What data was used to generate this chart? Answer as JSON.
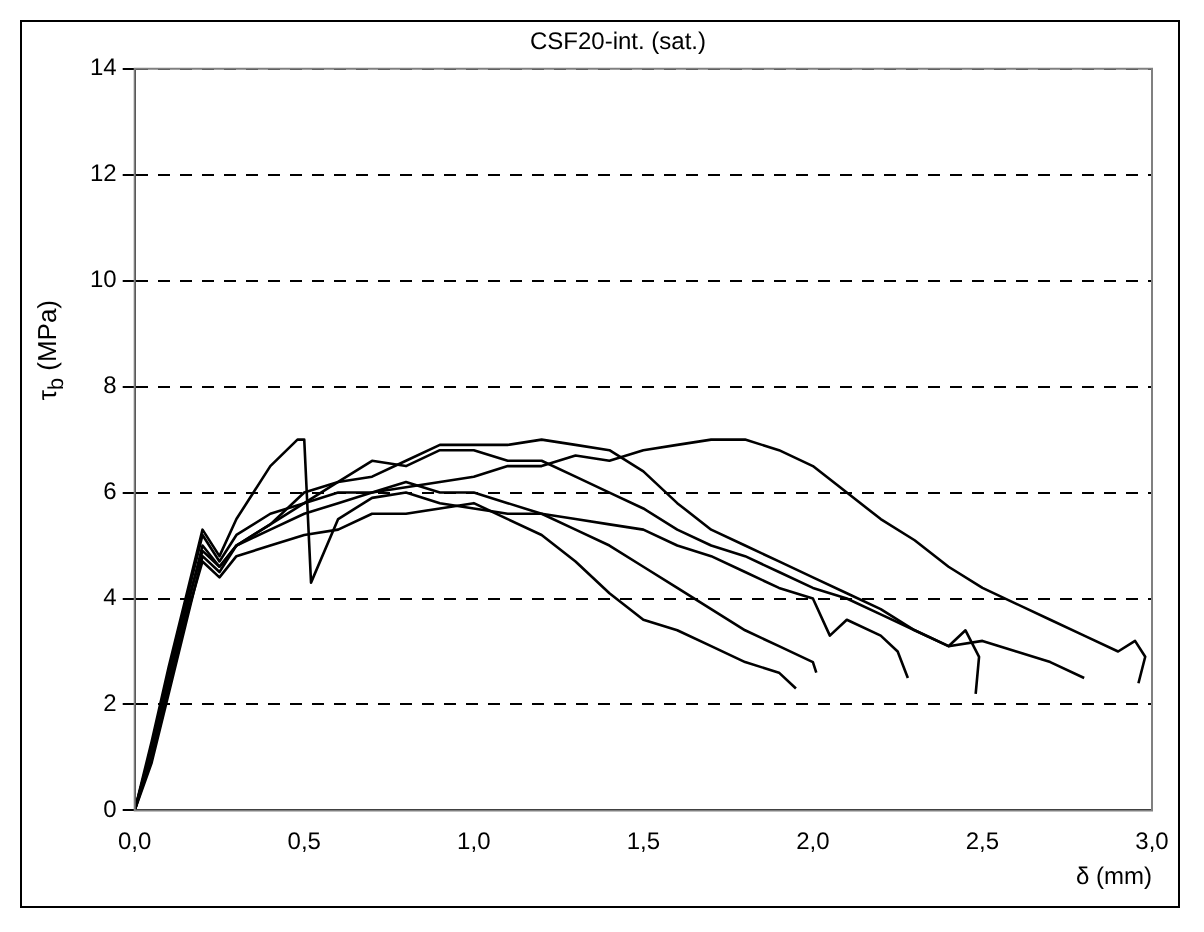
{
  "chart_data": {
    "type": "line",
    "title": "CSF20-int. (sat.)",
    "xlabel": "δ (mm)",
    "ylabel": "τ$_{b}$ (MPa)",
    "xlim": [
      0,
      3
    ],
    "xticks": [
      {
        "value": 0,
        "label": "0,0"
      },
      {
        "value": 0.5,
        "label": "0,5"
      },
      {
        "value": 1,
        "label": "1,0"
      },
      {
        "value": 1.5,
        "label": "1,5"
      },
      {
        "value": 2,
        "label": "2,0"
      },
      {
        "value": 2.5,
        "label": "2,5"
      },
      {
        "value": 3,
        "label": "3,0"
      }
    ],
    "ylim": [
      0,
      14
    ],
    "yticks": [
      0,
      2,
      4,
      6,
      8,
      10,
      12,
      14
    ],
    "grid": "y",
    "legend": false,
    "marker": "none",
    "line_style": "solid",
    "series": [
      {
        "color": "#000000",
        "x": [
          0,
          0.05,
          0.1,
          0.15,
          0.2,
          0.25,
          0.3,
          0.4,
          0.5,
          0.6,
          0.7,
          0.8,
          0.9,
          1.0,
          1.1,
          1.2,
          1.3,
          1.4,
          1.5,
          1.6,
          1.7,
          1.8,
          1.9,
          2.0,
          2.1,
          2.2,
          2.3,
          2.4,
          2.5,
          2.6,
          2.7,
          2.8,
          2.9,
          2.95,
          2.98,
          2.96
        ],
        "values": [
          0,
          1.2,
          2.6,
          3.8,
          4.9,
          4.6,
          5.0,
          5.3,
          5.6,
          5.8,
          6.0,
          6.1,
          6.2,
          6.3,
          6.5,
          6.5,
          6.7,
          6.6,
          6.8,
          6.9,
          7.0,
          7.0,
          6.8,
          6.5,
          6.0,
          5.5,
          5.1,
          4.6,
          4.2,
          3.9,
          3.6,
          3.3,
          3.0,
          3.2,
          2.9,
          2.4
        ]
      },
      {
        "color": "#000000",
        "x": [
          0,
          0.05,
          0.1,
          0.15,
          0.2,
          0.25,
          0.3,
          0.4,
          0.5,
          0.6,
          0.7,
          0.8,
          0.9,
          1.0,
          1.1,
          1.2,
          1.3,
          1.4,
          1.5,
          1.6,
          1.7,
          1.8,
          1.9,
          1.95
        ],
        "values": [
          0,
          1.0,
          2.3,
          3.6,
          4.7,
          4.4,
          4.8,
          5.0,
          5.2,
          5.3,
          5.6,
          5.6,
          5.7,
          5.8,
          5.5,
          5.2,
          4.7,
          4.1,
          3.6,
          3.4,
          3.1,
          2.8,
          2.6,
          2.3
        ]
      },
      {
        "color": "#000000",
        "x": [
          0,
          0.05,
          0.1,
          0.15,
          0.2,
          0.25,
          0.3,
          0.4,
          0.5,
          0.6,
          0.7,
          0.8,
          0.9,
          1.0,
          1.1,
          1.2,
          1.3,
          1.4,
          1.5,
          1.6,
          1.7,
          1.8,
          1.9,
          2.0,
          2.01
        ],
        "values": [
          0,
          1.1,
          2.4,
          3.7,
          5.0,
          4.6,
          5.0,
          5.4,
          5.8,
          6.0,
          6.0,
          6.2,
          6.0,
          6.0,
          5.8,
          5.6,
          5.3,
          5.0,
          4.6,
          4.2,
          3.8,
          3.4,
          3.1,
          2.8,
          2.6
        ]
      },
      {
        "color": "#000000",
        "x": [
          0,
          0.05,
          0.1,
          0.15,
          0.2,
          0.25,
          0.3,
          0.4,
          0.48,
          0.5,
          0.52,
          0.6,
          0.7,
          0.8,
          0.9,
          1.0,
          1.1,
          1.2,
          1.3,
          1.4,
          1.5,
          1.6,
          1.7,
          1.8,
          1.9,
          2.0,
          2.05,
          2.1,
          2.2,
          2.25,
          2.28
        ],
        "values": [
          0,
          1.3,
          2.7,
          4.0,
          5.3,
          4.8,
          5.5,
          6.5,
          7.0,
          7.0,
          4.3,
          5.5,
          5.9,
          6.0,
          5.8,
          5.7,
          5.6,
          5.6,
          5.5,
          5.4,
          5.3,
          5.0,
          4.8,
          4.5,
          4.2,
          4.0,
          3.3,
          3.6,
          3.3,
          3.0,
          2.5
        ]
      },
      {
        "color": "#000000",
        "x": [
          0,
          0.05,
          0.1,
          0.15,
          0.2,
          0.25,
          0.3,
          0.4,
          0.5,
          0.6,
          0.7,
          0.8,
          0.9,
          1.0,
          1.1,
          1.2,
          1.3,
          1.4,
          1.5,
          1.6,
          1.7,
          1.8,
          1.9,
          2.0,
          2.1,
          2.2,
          2.3,
          2.4,
          2.45,
          2.49,
          2.48
        ],
        "values": [
          0,
          0.9,
          2.2,
          3.5,
          4.8,
          4.5,
          5.0,
          5.4,
          6.0,
          6.2,
          6.6,
          6.5,
          6.8,
          6.8,
          6.6,
          6.6,
          6.3,
          6.0,
          5.7,
          5.3,
          5.0,
          4.8,
          4.5,
          4.2,
          4.0,
          3.7,
          3.4,
          3.1,
          3.4,
          2.9,
          2.2
        ]
      },
      {
        "color": "#000000",
        "x": [
          0,
          0.05,
          0.1,
          0.15,
          0.2,
          0.25,
          0.3,
          0.4,
          0.5,
          0.6,
          0.7,
          0.8,
          0.9,
          1.0,
          1.1,
          1.2,
          1.3,
          1.4,
          1.5,
          1.6,
          1.7,
          1.8,
          1.9,
          2.0,
          2.1,
          2.2,
          2.3,
          2.4,
          2.5,
          2.6,
          2.7,
          2.8
        ],
        "values": [
          0,
          1.2,
          2.5,
          3.9,
          5.2,
          4.7,
          5.2,
          5.6,
          5.8,
          6.2,
          6.3,
          6.6,
          6.9,
          6.9,
          6.9,
          7.0,
          6.9,
          6.8,
          6.4,
          5.8,
          5.3,
          5.0,
          4.7,
          4.4,
          4.1,
          3.8,
          3.4,
          3.1,
          3.2,
          3.0,
          2.8,
          2.5
        ]
      }
    ]
  }
}
